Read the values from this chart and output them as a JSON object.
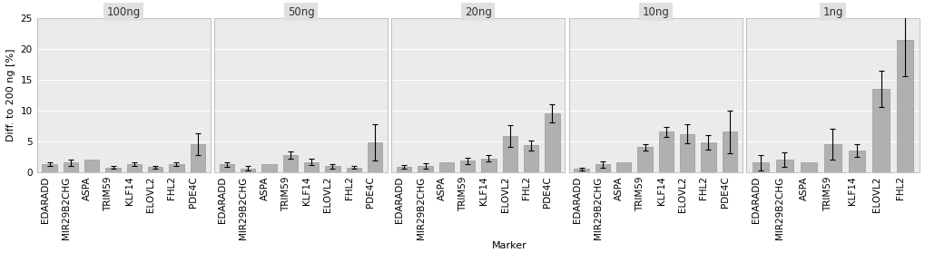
{
  "panels": [
    "100ng",
    "50ng",
    "20ng",
    "10ng",
    "1ng"
  ],
  "markers": [
    "EDARADD",
    "MIR29B2CHG",
    "ASPA",
    "TRIM59",
    "KLF14",
    "ELOVL2",
    "FHL2",
    "PDE4C"
  ],
  "bar_color": "#b0b0b0",
  "bar_edge_color": "#999999",
  "values": {
    "100ng": [
      1.3,
      1.5,
      2.0,
      0.7,
      1.2,
      0.8,
      1.3,
      4.5
    ],
    "50ng": [
      1.2,
      0.6,
      1.2,
      2.8,
      1.6,
      0.9,
      0.7,
      4.8
    ],
    "20ng": [
      0.8,
      1.0,
      1.5,
      1.8,
      2.2,
      5.8,
      4.3,
      9.5
    ],
    "10ng": [
      0.5,
      1.2,
      1.5,
      4.0,
      6.5,
      6.2,
      4.8,
      6.5
    ],
    "1ng": [
      1.5,
      2.0,
      1.5,
      4.5,
      3.5,
      13.5,
      21.5,
      null
    ]
  },
  "errors": {
    "100ng": [
      0.3,
      0.5,
      null,
      0.2,
      0.3,
      0.2,
      0.3,
      1.8
    ],
    "50ng": [
      0.4,
      0.3,
      null,
      0.6,
      0.5,
      0.4,
      0.2,
      3.0
    ],
    "20ng": [
      0.3,
      0.4,
      null,
      0.5,
      0.5,
      1.8,
      0.8,
      1.5
    ],
    "10ng": [
      0.2,
      0.5,
      null,
      0.5,
      0.8,
      1.5,
      1.2,
      3.5
    ],
    "1ng": [
      1.2,
      1.2,
      null,
      2.5,
      1.0,
      3.0,
      6.0,
      null
    ]
  },
  "ylim": [
    0,
    25
  ],
  "yticks": [
    0,
    5,
    10,
    15,
    20,
    25
  ],
  "ylabel": "Diff. to 200 ng [%]",
  "xlabel": "Marker",
  "strip_bg": "#e0e0e0",
  "strip_line_color": "#808080",
  "panel_bg": "#ebebeb",
  "grid_color": "#ffffff",
  "border_color": "#aaaaaa",
  "title_fontsize": 8.5,
  "axis_fontsize": 8,
  "tick_fontsize": 7.5
}
